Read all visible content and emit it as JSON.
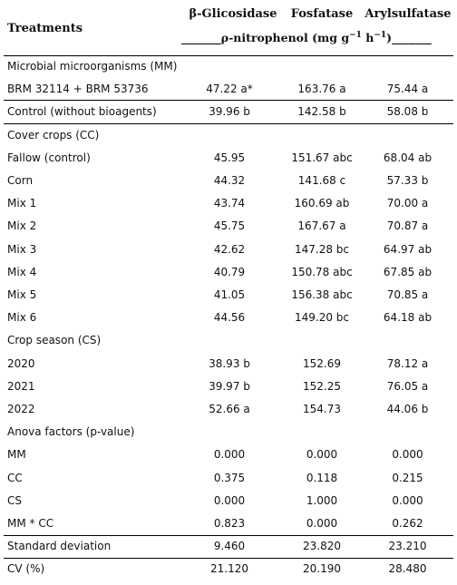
{
  "header": {
    "treatments": "Treatments",
    "col1": "β-Glicosidase",
    "col2": "Fosfatase",
    "col3": "Arylsulfatase",
    "unit_prefix": "_______ρ-nitrophenol (mg g",
    "unit_exp1": "−1",
    "unit_mid": " h",
    "unit_exp2": "−1",
    "unit_suffix": ")_______"
  },
  "rows": [
    {
      "label": "Microbial microorganisms (MM)",
      "v1": "",
      "v2": "",
      "v3": ""
    },
    {
      "label": "BRM 32114 + BRM 53736",
      "v1": "47.22 a*",
      "v2": "163.76 a",
      "v3": "75.44 a"
    },
    {
      "label": "Control (without bioagents)",
      "v1": "39.96 b",
      "v2": "142.58 b",
      "v3": "58.08 b"
    },
    {
      "label": "Cover crops (CC)",
      "v1": "",
      "v2": "",
      "v3": ""
    },
    {
      "label": "Fallow (control)",
      "v1": "45.95",
      "v2": "151.67 abc",
      "v3": "68.04 ab"
    },
    {
      "label": "Corn",
      "v1": "44.32",
      "v2": "141.68 c",
      "v3": "57.33 b"
    },
    {
      "label": "Mix 1",
      "v1": "43.74",
      "v2": "160.69 ab",
      "v3": "70.00 a"
    },
    {
      "label": "Mix 2",
      "v1": "45.75",
      "v2": "167.67 a",
      "v3": "70.87 a"
    },
    {
      "label": "Mix 3",
      "v1": "42.62",
      "v2": "147.28 bc",
      "v3": "64.97 ab"
    },
    {
      "label": "Mix 4",
      "v1": "40.79",
      "v2": "150.78 abc",
      "v3": "67.85 ab"
    },
    {
      "label": "Mix 5",
      "v1": "41.05",
      "v2": "156.38 abc",
      "v3": "70.85 a"
    },
    {
      "label": "Mix 6",
      "v1": "44.56",
      "v2": "149.20 bc",
      "v3": "64.18 ab"
    },
    {
      "label": "Crop season (CS)",
      "v1": "",
      "v2": "",
      "v3": ""
    },
    {
      "label": "2020",
      "v1": "38.93 b",
      "v2": "152.69",
      "v3": "78.12 a"
    },
    {
      "label": "2021",
      "v1": "39.97 b",
      "v2": "152.25",
      "v3": "76.05 a"
    },
    {
      "label": "2022",
      "v1": "52.66 a",
      "v2": "154.73",
      "v3": "44.06 b"
    },
    {
      "label": "Anova factors (p-value)",
      "v1": "",
      "v2": "",
      "v3": ""
    },
    {
      "label": "MM",
      "v1": "0.000",
      "v2": "0.000",
      "v3": "0.000"
    },
    {
      "label": "CC",
      "v1": "0.375",
      "v2": "0.118",
      "v3": "0.215"
    },
    {
      "label": "CS",
      "v1": "0.000",
      "v2": "1.000",
      "v3": "0.000"
    },
    {
      "label": "MM * CC",
      "v1": "0.823",
      "v2": "0.000",
      "v3": "0.262"
    },
    {
      "label": "Standard deviation",
      "v1": "9.460",
      "v2": "23.820",
      "v3": "23.210"
    },
    {
      "label": "CV (%)",
      "v1": "21.120",
      "v2": "20.190",
      "v3": "28.480"
    }
  ]
}
